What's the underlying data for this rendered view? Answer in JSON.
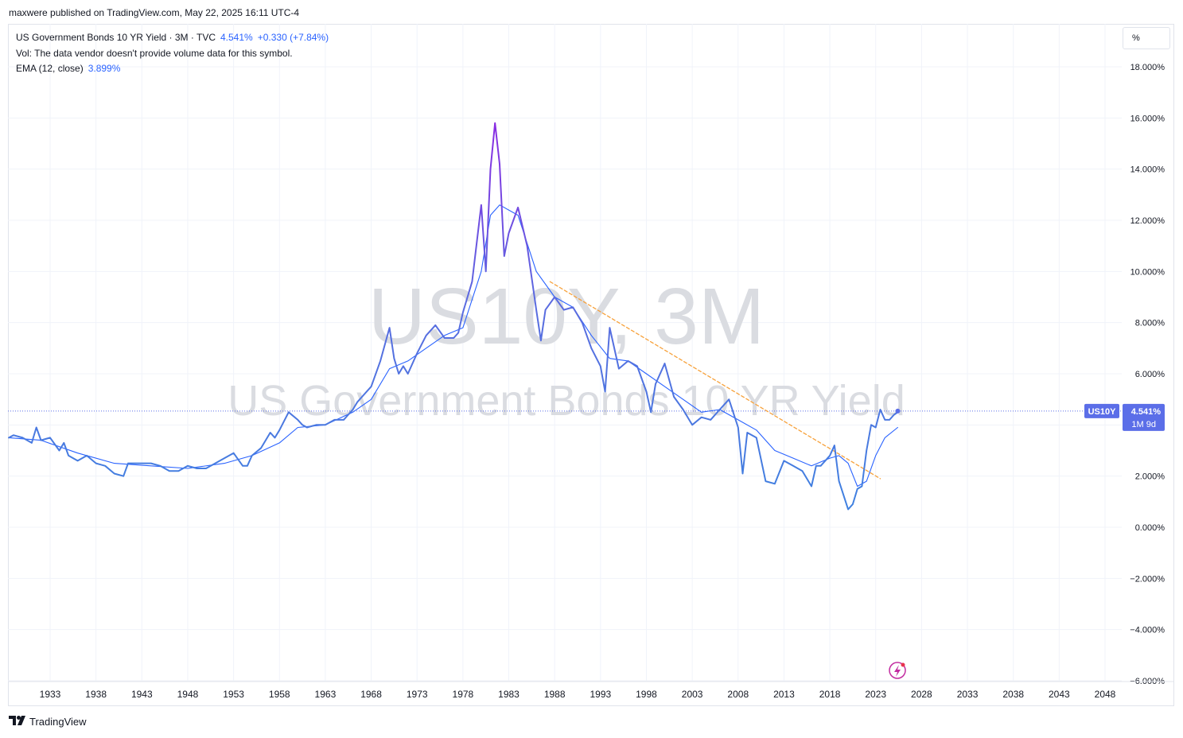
{
  "publisher": "maxwere published on TradingView.com, May 22, 2025 16:11 UTC-4",
  "legend": {
    "title": "US Government Bonds 10 YR Yield · 3M · TVC",
    "price": "4.541%",
    "change": "+0.330 (+7.84%)",
    "volume_note": "Vol: The data vendor doesn't provide volume data for this symbol.",
    "ema_label": "EMA (12, close)",
    "ema_value": "3.899%"
  },
  "scale_button": "%",
  "watermark": {
    "symbol": "US10Y, 3M",
    "name": "US Government Bonds 10 YR Yield"
  },
  "price_badge": {
    "symbol": "US10Y",
    "price": "4.541%",
    "countdown": "1M 9d"
  },
  "brand": "TradingView",
  "colors": {
    "low": "#3d83e0",
    "high": "#8a2be2",
    "ema": "#2962ff",
    "trendline": "#f7a13a",
    "badge": "#5b6ee8"
  },
  "chart_data": {
    "type": "line",
    "title": "US Government Bonds 10 YR Yield",
    "ylabel": "%",
    "ylim": [
      -6,
      18.5
    ],
    "xlim": [
      1928.5,
      2051
    ],
    "y_ticks": [
      "18.000%",
      "16.000%",
      "14.000%",
      "12.000%",
      "10.000%",
      "8.000%",
      "6.000%",
      "4.000%",
      "2.000%",
      "0.000%",
      "−2.000%",
      "−4.000%",
      "−6.000%"
    ],
    "y_tick_values": [
      18,
      16,
      14,
      12,
      10,
      8,
      6,
      4,
      2,
      0,
      -2,
      -4,
      -6
    ],
    "x_ticks": [
      "1933",
      "1938",
      "1943",
      "1948",
      "1953",
      "1958",
      "1963",
      "1968",
      "1973",
      "1978",
      "1983",
      "1988",
      "1993",
      "1998",
      "2003",
      "2008",
      "2013",
      "2018",
      "2023",
      "2028",
      "2033",
      "2038",
      "2043",
      "2048"
    ],
    "x_tick_values": [
      1933,
      1938,
      1943,
      1948,
      1953,
      1958,
      1963,
      1968,
      1973,
      1978,
      1983,
      1988,
      1993,
      1998,
      2003,
      2008,
      2013,
      2018,
      2023,
      2028,
      2033,
      2038,
      2043,
      2048
    ],
    "series": [
      {
        "name": "US10Y",
        "x": [
          1928.5,
          1929,
          1930,
          1931,
          1931.5,
          1932,
          1933,
          1934,
          1934.5,
          1935,
          1936,
          1937,
          1938,
          1939,
          1940,
          1941,
          1941.5,
          1942,
          1943,
          1944,
          1945,
          1946,
          1947,
          1948,
          1949,
          1950,
          1951,
          1952,
          1953,
          1954,
          1954.5,
          1955,
          1956,
          1957,
          1957.5,
          1958,
          1959,
          1960,
          1960.5,
          1961,
          1962,
          1963,
          1964,
          1965,
          1966,
          1966.5,
          1967,
          1968,
          1969,
          1970,
          1970.5,
          1971,
          1971.5,
          1972,
          1973,
          1974,
          1975,
          1976,
          1977,
          1977.5,
          1978,
          1979,
          1980,
          1980.5,
          1981,
          1981.5,
          1982,
          1982.5,
          1983,
          1984,
          1985,
          1986,
          1986.5,
          1987,
          1988,
          1989,
          1990,
          1991,
          1992,
          1993,
          1993.5,
          1994,
          1995,
          1996,
          1997,
          1998,
          1998.5,
          1999,
          2000,
          2001,
          2002,
          2003,
          2004,
          2005,
          2006,
          2007,
          2008,
          2008.5,
          2009,
          2010,
          2011,
          2012,
          2013,
          2014,
          2015,
          2016,
          2016.5,
          2017,
          2018,
          2018.5,
          2019,
          2020,
          2020.5,
          2021,
          2021.5,
          2022,
          2022.5,
          2023,
          2023.5,
          2024,
          2024.5,
          2025,
          2025.4
        ],
        "values": [
          3.5,
          3.6,
          3.5,
          3.3,
          3.9,
          3.4,
          3.5,
          3.0,
          3.3,
          2.8,
          2.6,
          2.8,
          2.5,
          2.4,
          2.1,
          2.0,
          2.5,
          2.5,
          2.5,
          2.5,
          2.4,
          2.2,
          2.2,
          2.4,
          2.3,
          2.3,
          2.5,
          2.7,
          2.9,
          2.4,
          2.4,
          2.8,
          3.1,
          3.7,
          3.5,
          3.8,
          4.5,
          4.2,
          4.0,
          3.9,
          4.0,
          4.0,
          4.2,
          4.2,
          4.6,
          4.9,
          5.1,
          5.5,
          6.5,
          7.8,
          6.6,
          6.0,
          6.3,
          6.0,
          6.8,
          7.5,
          7.9,
          7.4,
          7.4,
          7.6,
          8.4,
          9.6,
          12.6,
          10.0,
          14.0,
          15.8,
          14.2,
          10.6,
          11.5,
          12.5,
          11.0,
          8.5,
          7.3,
          8.5,
          9.0,
          8.5,
          8.6,
          8.0,
          7.0,
          6.3,
          5.3,
          7.8,
          6.2,
          6.5,
          6.3,
          5.3,
          4.5,
          5.6,
          6.4,
          5.1,
          4.6,
          4.0,
          4.3,
          4.2,
          4.6,
          5.0,
          3.9,
          2.1,
          3.7,
          3.5,
          1.8,
          1.7,
          2.6,
          2.4,
          2.2,
          1.6,
          2.4,
          2.4,
          2.8,
          3.2,
          1.8,
          0.7,
          0.9,
          1.5,
          1.6,
          3.0,
          4.0,
          3.9,
          4.6,
          4.2,
          4.2,
          4.4,
          4.5
        ]
      },
      {
        "name": "EMA (12, close)",
        "x": [
          1928.5,
          1932,
          1936,
          1940,
          1944,
          1948,
          1952,
          1955,
          1958,
          1960,
          1963,
          1966,
          1968,
          1970,
          1972,
          1974,
          1976,
          1978,
          1980,
          1981,
          1982,
          1984,
          1986,
          1988,
          1990,
          1992,
          1994,
          1996,
          1998,
          2000,
          2002,
          2004,
          2006,
          2008,
          2010,
          2012,
          2014,
          2016,
          2018,
          2019,
          2020,
          2021,
          2022,
          2023,
          2024,
          2025.4
        ],
        "values": [
          3.5,
          3.4,
          2.9,
          2.5,
          2.4,
          2.3,
          2.5,
          2.8,
          3.3,
          3.9,
          4.0,
          4.5,
          5.0,
          6.2,
          6.5,
          7.0,
          7.5,
          7.8,
          10.0,
          12.2,
          12.6,
          12.2,
          10.0,
          9.0,
          8.6,
          7.5,
          6.6,
          6.5,
          6.0,
          5.5,
          5.0,
          4.5,
          4.6,
          4.2,
          3.8,
          3.0,
          2.7,
          2.4,
          2.7,
          2.8,
          2.5,
          1.6,
          1.8,
          2.8,
          3.5,
          3.9
        ]
      }
    ],
    "trendline": {
      "x": [
        1987.5,
        2023.5
      ],
      "values": [
        9.6,
        1.9
      ]
    },
    "last_price_line": 4.541
  }
}
